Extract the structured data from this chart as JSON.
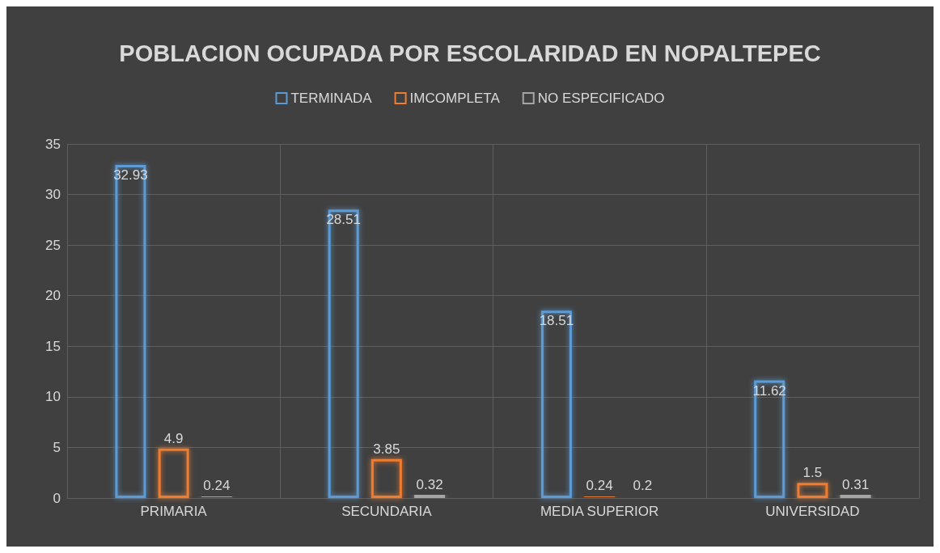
{
  "chart_data": {
    "type": "bar",
    "title": "POBLACION OCUPADA POR ESCOLARIDAD EN NOPALTEPEC",
    "categories": [
      "PRIMARIA",
      "SECUNDARIA",
      "MEDIA SUPERIOR",
      "UNIVERSIDAD"
    ],
    "series": [
      {
        "name": "TERMINADA",
        "color": "#5b9bd5",
        "values": [
          32.93,
          28.51,
          18.51,
          11.62
        ]
      },
      {
        "name": "IMCOMPLETA",
        "color": "#ed7d31",
        "values": [
          4.9,
          3.85,
          0.24,
          1.5
        ]
      },
      {
        "name": "NO ESPECIFICADO",
        "color": "#a5a5a5",
        "values": [
          0.24,
          0.32,
          0.2,
          0.31
        ]
      }
    ],
    "ylim": [
      0,
      35
    ],
    "yticks": [
      0,
      5,
      10,
      15,
      20,
      25,
      30,
      35
    ],
    "grid": true,
    "legend": "top",
    "data_labels": true
  }
}
